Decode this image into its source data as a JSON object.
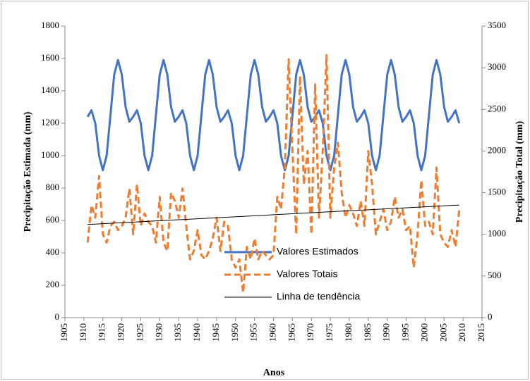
{
  "chart_data": {
    "type": "line",
    "xlabel": "Anos",
    "ylabel": "Precipitação Estimada (mm)",
    "y2label": "Precipitação Total (mm)",
    "xlim": [
      1905,
      2015
    ],
    "xticks": [
      1905,
      1910,
      1915,
      1920,
      1925,
      1930,
      1935,
      1940,
      1945,
      1950,
      1955,
      1960,
      1965,
      1970,
      1975,
      1980,
      1985,
      1990,
      1995,
      2000,
      2005,
      2010,
      2015
    ],
    "ylim": [
      0,
      1800
    ],
    "yticks": [
      0,
      200,
      400,
      600,
      800,
      1000,
      1200,
      1400,
      1600,
      1800
    ],
    "y2lim": [
      0,
      3500
    ],
    "y2ticks": [
      0,
      500,
      1000,
      1500,
      2000,
      2500,
      3000,
      3500
    ],
    "x": [
      1911,
      1912,
      1913,
      1914,
      1915,
      1916,
      1917,
      1918,
      1919,
      1920,
      1921,
      1922,
      1923,
      1924,
      1925,
      1926,
      1927,
      1928,
      1929,
      1930,
      1931,
      1932,
      1933,
      1934,
      1935,
      1936,
      1937,
      1938,
      1939,
      1940,
      1941,
      1942,
      1943,
      1944,
      1945,
      1946,
      1947,
      1948,
      1949,
      1950,
      1951,
      1952,
      1953,
      1954,
      1955,
      1956,
      1957,
      1958,
      1959,
      1960,
      1961,
      1962,
      1963,
      1964,
      1965,
      1966,
      1967,
      1968,
      1969,
      1970,
      1971,
      1972,
      1973,
      1974,
      1975,
      1976,
      1977,
      1978,
      1979,
      1980,
      1981,
      1982,
      1983,
      1984,
      1985,
      1986,
      1987,
      1988,
      1989,
      1990,
      1991,
      1992,
      1993,
      1994,
      1995,
      1996,
      1997,
      1998,
      1999,
      2000,
      2001,
      2002,
      2003,
      2004,
      2005,
      2006,
      2007,
      2008,
      2009
    ],
    "series": [
      {
        "name": "Valores Estimados",
        "color": "#4472c4",
        "axis": "y",
        "style": "solid",
        "width": 3,
        "values": [
          1240,
          1280,
          1200,
          1000,
          910,
          1000,
          1250,
          1500,
          1590,
          1500,
          1300,
          1210,
          1240,
          1280,
          1200,
          1000,
          910,
          1000,
          1250,
          1500,
          1590,
          1500,
          1300,
          1210,
          1240,
          1280,
          1200,
          1000,
          910,
          1000,
          1250,
          1500,
          1590,
          1500,
          1300,
          1210,
          1240,
          1280,
          1200,
          1000,
          910,
          1000,
          1250,
          1500,
          1590,
          1500,
          1300,
          1210,
          1240,
          1280,
          1200,
          1000,
          910,
          1000,
          1250,
          1500,
          1590,
          1500,
          1300,
          1210,
          1240,
          1280,
          1200,
          1000,
          910,
          1000,
          1250,
          1500,
          1590,
          1500,
          1300,
          1210,
          1240,
          1280,
          1200,
          1000,
          910,
          1000,
          1250,
          1500,
          1590,
          1500,
          1300,
          1210,
          1240,
          1280,
          1200,
          1000,
          910,
          1000,
          1250,
          1500,
          1590,
          1500,
          1300,
          1210,
          1240,
          1280,
          1200
        ]
      },
      {
        "name": "Valores Totais",
        "color": "#ed7d31",
        "axis": "y2",
        "style": "dashed",
        "width": 3,
        "values": [
          900,
          1350,
          1200,
          1700,
          1000,
          900,
          1100,
          1150,
          1050,
          1100,
          1200,
          1550,
          1000,
          1600,
          1100,
          1250,
          1150,
          1100,
          900,
          1450,
          900,
          800,
          1500,
          1400,
          1200,
          1550,
          1100,
          700,
          800,
          1050,
          750,
          700,
          800,
          950,
          1200,
          800,
          1150,
          1100,
          700,
          600,
          700,
          300,
          850,
          700,
          950,
          700,
          800,
          750,
          700,
          750,
          1450,
          1300,
          1800,
          3100,
          2000,
          1000,
          2900,
          1600,
          2000,
          1000,
          2800,
          1200,
          2000,
          3150,
          1200,
          1800,
          2100,
          1500,
          1200,
          1350,
          1250,
          1100,
          1400,
          1100,
          2000,
          1600,
          1000,
          1150,
          1300,
          1050,
          1150,
          1450,
          1200,
          1300,
          1050,
          1100,
          600,
          1000,
          1650,
          1100,
          1150,
          1000,
          1800,
          1000,
          900,
          850,
          1050,
          850,
          1300
        ]
      },
      {
        "name": "Linha de tendência",
        "color": "#000000",
        "axis": "y",
        "style": "solid",
        "width": 1,
        "x": [
          1911,
          2009
        ],
        "values": [
          575,
          695
        ]
      }
    ]
  }
}
